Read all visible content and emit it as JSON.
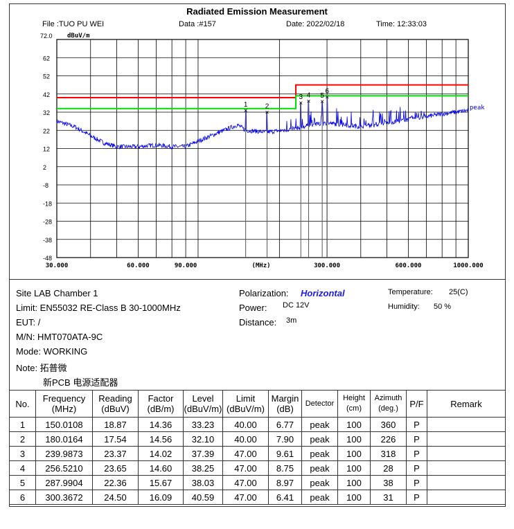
{
  "header": {
    "title": "Radiated Emission Measurement",
    "file": "File :TUO PU WEI",
    "data": "Data :#157",
    "date": "Date: 2022/02/18",
    "time": "Time: 12:33:03"
  },
  "chart_data": {
    "type": "line",
    "title": "Radiated Emission Measurement",
    "ylabel": "dBuV/m",
    "xlabel": "(MHz)",
    "xscale": "log",
    "xlim": [
      30,
      1000
    ],
    "ylim": [
      -48,
      72
    ],
    "y_ticks": [
      "72.0",
      "62",
      "52",
      "42",
      "32",
      "22",
      "12",
      "2",
      "-8",
      "-18",
      "-28",
      "-38",
      "-48"
    ],
    "x_tick_labels": [
      {
        "v": 30,
        "t": "30.000"
      },
      {
        "v": 60,
        "t": "60.000"
      },
      {
        "v": 90,
        "t": "90.000"
      },
      {
        "v": 300,
        "t": "300.000"
      },
      {
        "v": 600,
        "t": "600.000"
      },
      {
        "v": 1000,
        "t": "1000.000"
      }
    ],
    "x_grid": [
      30,
      40,
      50,
      60,
      70,
      80,
      90,
      100,
      200,
      300,
      400,
      500,
      600,
      700,
      800,
      900,
      1000
    ],
    "series": [
      {
        "name": "peak",
        "color": "#0000ee",
        "envelope": [
          [
            30,
            27
          ],
          [
            35,
            24
          ],
          [
            40,
            19
          ],
          [
            45,
            15
          ],
          [
            50,
            13
          ],
          [
            60,
            13
          ],
          [
            70,
            14
          ],
          [
            80,
            13
          ],
          [
            90,
            13
          ],
          [
            100,
            16
          ],
          [
            120,
            21
          ],
          [
            140,
            25
          ],
          [
            150,
            22
          ],
          [
            180,
            21
          ],
          [
            230,
            23
          ],
          [
            260,
            25
          ],
          [
            300,
            26
          ],
          [
            400,
            24
          ],
          [
            500,
            26
          ],
          [
            600,
            28
          ],
          [
            800,
            31
          ],
          [
            1000,
            33
          ]
        ],
        "spikes": [
          [
            150.0108,
            33.23
          ],
          [
            180.0164,
            32.1
          ],
          [
            239.9873,
            37.39
          ],
          [
            256.521,
            38.25
          ],
          [
            287.9904,
            38.03
          ],
          [
            300.3672,
            40.59
          ]
        ]
      },
      {
        "name": "Limit",
        "color": "#ff0000",
        "points": [
          [
            30,
            40
          ],
          [
            230,
            40
          ],
          [
            230,
            47
          ],
          [
            1000,
            47
          ]
        ]
      },
      {
        "name": "Margin",
        "color": "#00dd00",
        "points": [
          [
            30,
            34
          ],
          [
            230,
            34
          ],
          [
            230,
            41
          ],
          [
            1000,
            41
          ]
        ]
      }
    ],
    "markers": [
      "1",
      "2",
      "3",
      "4",
      "5",
      "6"
    ]
  },
  "info": {
    "site": "Site  LAB Chamber 1",
    "limit": "Limit:  EN55032 RE-Class B 30-1000MHz",
    "eut": "EUT:  /",
    "mn": "M/N:  HMT070ATA-9C",
    "mode": "Mode:  WORKING",
    "note": "Note:  拓普微",
    "note2": "新PCB 电源适配器",
    "pol_label": "Polarization:",
    "pol": "Horizontal",
    "power_label": "Power:",
    "power": "DC 12V",
    "dist_label": "Distance:",
    "dist": "3m",
    "temp_label": "Temperature:",
    "temp": "25(C)",
    "hum_label": "Humidity:",
    "hum": "50 %"
  },
  "table": {
    "headers": [
      "No.",
      "Frequency\n(MHz)",
      "Reading\n(dBuV)",
      "Factor\n(dB/m)",
      "Level\n(dBuV/m)",
      "Limit\n(dBuV/m)",
      "Margin\n(dB)",
      "Detector",
      "Height\n(cm)",
      "Azimuth\n(deg.)",
      "P/F",
      "Remark"
    ],
    "rows": [
      [
        "1",
        "150.0108",
        "18.87",
        "14.36",
        "33.23",
        "40.00",
        "6.77",
        "peak",
        "100",
        "360",
        "P",
        ""
      ],
      [
        "2",
        "180.0164",
        "17.54",
        "14.56",
        "32.10",
        "40.00",
        "7.90",
        "peak",
        "100",
        "226",
        "P",
        ""
      ],
      [
        "3",
        "239.9873",
        "23.37",
        "14.02",
        "37.39",
        "47.00",
        "9.61",
        "peak",
        "100",
        "318",
        "P",
        ""
      ],
      [
        "4",
        "256.5210",
        "23.65",
        "14.60",
        "38.25",
        "47.00",
        "8.75",
        "peak",
        "100",
        "28",
        "P",
        ""
      ],
      [
        "5",
        "287.9904",
        "22.36",
        "15.67",
        "38.03",
        "47.00",
        "8.97",
        "peak",
        "100",
        "38",
        "P",
        ""
      ],
      [
        "6",
        "300.3672",
        "24.50",
        "16.09",
        "40.59",
        "47.00",
        "6.41",
        "peak",
        "100",
        "31",
        "P",
        ""
      ]
    ]
  }
}
